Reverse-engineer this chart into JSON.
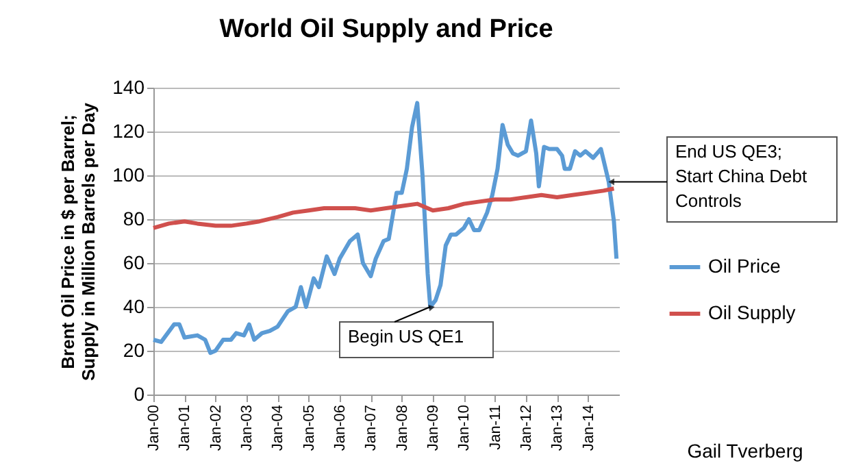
{
  "chart_data": {
    "type": "line",
    "title": "World Oil Supply and Price",
    "ylabel": "Brent Oil Price in $ per Barrel;\nSupply in Million Barrels per Day",
    "xlim": [
      "2000-01",
      "2015-01"
    ],
    "xticks": [
      {
        "value": "2000-01",
        "label": "Jan-00"
      },
      {
        "value": "2001-01",
        "label": "Jan-01"
      },
      {
        "value": "2002-01",
        "label": "Jan-02"
      },
      {
        "value": "2003-01",
        "label": "Jan-03"
      },
      {
        "value": "2004-01",
        "label": "Jan-04"
      },
      {
        "value": "2005-01",
        "label": "Jan-05"
      },
      {
        "value": "2006-01",
        "label": "Jan-06"
      },
      {
        "value": "2007-01",
        "label": "Jan-07"
      },
      {
        "value": "2008-01",
        "label": "Jan-08"
      },
      {
        "value": "2009-01",
        "label": "Jan-09"
      },
      {
        "value": "2010-01",
        "label": "Jan-10"
      },
      {
        "value": "2011-01",
        "label": "Jan-11"
      },
      {
        "value": "2012-01",
        "label": "Jan-12"
      },
      {
        "value": "2013-01",
        "label": "Jan-13"
      },
      {
        "value": "2014-01",
        "label": "Jan-14"
      }
    ],
    "ylim": [
      0,
      140
    ],
    "yticks": [
      0,
      20,
      40,
      60,
      80,
      100,
      120,
      140
    ],
    "grid": "y",
    "legend": "right",
    "marker": "none",
    "line_style": "solid",
    "series": [
      {
        "name": "Oil Price",
        "color": "#5b9bd5",
        "x": [
          "2000-01",
          "2000-04",
          "2000-09",
          "2000-11",
          "2001-01",
          "2001-06",
          "2001-09",
          "2001-11",
          "2002-01",
          "2002-04",
          "2002-07",
          "2002-09",
          "2002-12",
          "2003-02",
          "2003-04",
          "2003-07",
          "2003-10",
          "2004-01",
          "2004-05",
          "2004-08",
          "2004-10",
          "2004-12",
          "2005-03",
          "2005-05",
          "2005-08",
          "2005-11",
          "2006-01",
          "2006-05",
          "2006-08",
          "2006-10",
          "2007-01",
          "2007-03",
          "2007-06",
          "2007-08",
          "2007-11",
          "2008-01",
          "2008-03",
          "2008-05",
          "2008-07",
          "2008-09",
          "2008-11",
          "2008-12",
          "2009-02",
          "2009-04",
          "2009-06",
          "2009-08",
          "2009-10",
          "2010-01",
          "2010-03",
          "2010-05",
          "2010-07",
          "2010-10",
          "2010-12",
          "2011-02",
          "2011-04",
          "2011-06",
          "2011-08",
          "2011-10",
          "2012-01",
          "2012-03",
          "2012-05",
          "2012-06",
          "2012-08",
          "2012-10",
          "2013-01",
          "2013-03",
          "2013-04",
          "2013-06",
          "2013-08",
          "2013-10",
          "2013-12",
          "2014-03",
          "2014-06",
          "2014-09",
          "2014-11",
          "2014-12"
        ],
        "values": [
          25,
          24,
          32,
          32,
          26,
          27,
          25,
          19,
          20,
          25,
          25,
          28,
          27,
          32,
          25,
          28,
          29,
          31,
          38,
          40,
          49,
          40,
          53,
          49,
          63,
          55,
          62,
          70,
          73,
          60,
          54,
          62,
          70,
          71,
          92,
          92,
          103,
          122,
          133,
          100,
          55,
          40,
          43,
          50,
          68,
          73,
          73,
          76,
          80,
          75,
          75,
          83,
          91,
          103,
          123,
          114,
          110,
          109,
          111,
          125,
          110,
          95,
          113,
          112,
          112,
          109,
          103,
          103,
          111,
          109,
          111,
          108,
          112,
          97,
          79,
          62
        ]
      },
      {
        "name": "Oil Supply",
        "color": "#d0504d",
        "x": [
          "2000-01",
          "2000-07",
          "2001-01",
          "2001-06",
          "2002-01",
          "2002-07",
          "2003-01",
          "2003-06",
          "2004-01",
          "2004-07",
          "2005-01",
          "2005-07",
          "2006-01",
          "2006-07",
          "2007-01",
          "2007-07",
          "2008-01",
          "2008-07",
          "2009-01",
          "2009-07",
          "2010-01",
          "2010-07",
          "2011-01",
          "2011-07",
          "2012-01",
          "2012-07",
          "2013-01",
          "2013-07",
          "2014-01",
          "2014-07",
          "2014-11"
        ],
        "values": [
          76,
          78,
          79,
          78,
          77,
          77,
          78,
          79,
          81,
          83,
          84,
          85,
          85,
          85,
          84,
          85,
          86,
          87,
          84,
          85,
          87,
          88,
          89,
          89,
          90,
          91,
          90,
          91,
          92,
          93,
          94
        ]
      }
    ],
    "annotations": [
      {
        "text": "Begin US QE1",
        "x": "2008-12",
        "y": 40
      },
      {
        "text": "End US QE3;\nStart China Debt\nControls",
        "x": "2014-10",
        "y": 97
      },
      "Gail Tverberg"
    ]
  }
}
